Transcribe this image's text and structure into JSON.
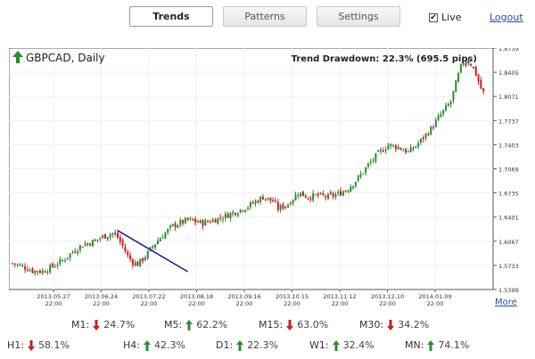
{
  "tabs": [
    {
      "label": "Trends",
      "active": true
    },
    {
      "label": "Patterns",
      "active": false
    },
    {
      "label": "Settings",
      "active": false
    }
  ],
  "live": {
    "label": "Live",
    "checked": true
  },
  "logout_label": "Logout",
  "more_label": "More",
  "colors": {
    "up": "#2e8b2e",
    "down": "#c42020",
    "trendline": "#1a1a9a",
    "border": "#555555"
  },
  "chart_data": {
    "type": "candlestick",
    "title": "GBPCAD, Daily",
    "title_arrow": "up",
    "annotation": "Trend Drawdown: 22.3% (695.5 pips)",
    "x_tick_labels": [
      [
        "2013.05.27",
        "22:00"
      ],
      [
        "2013.06.24",
        "22:00"
      ],
      [
        "2013.07.22",
        "22:00"
      ],
      [
        "2013.08.18",
        "22:00"
      ],
      [
        "2013.09.16",
        "22:00"
      ],
      [
        "2013.10.15",
        "22:00"
      ],
      [
        "2013.11.12",
        "22:00"
      ],
      [
        "2013.12.10",
        "22:00"
      ],
      [
        "2014.01.09",
        "22:00"
      ]
    ],
    "y_ticks": [
      "1.8739",
      "1.8405",
      "1.8071",
      "1.7737",
      "1.7403",
      "1.7069",
      "1.6735",
      "1.6401",
      "1.6067",
      "1.5733",
      "1.5399"
    ],
    "ylim": [
      1.5399,
      1.8739
    ],
    "close_path": [
      [
        0,
        1.576
      ],
      [
        4,
        1.572
      ],
      [
        8,
        1.566
      ],
      [
        12,
        1.565
      ],
      [
        16,
        1.572
      ],
      [
        20,
        1.58
      ],
      [
        24,
        1.592
      ],
      [
        28,
        1.602
      ],
      [
        32,
        1.606
      ],
      [
        36,
        1.613
      ],
      [
        40,
        1.618
      ],
      [
        42,
        1.612
      ],
      [
        44,
        1.6
      ],
      [
        46,
        1.586
      ],
      [
        48,
        1.578
      ],
      [
        50,
        1.575
      ],
      [
        52,
        1.582
      ],
      [
        54,
        1.59
      ],
      [
        56,
        1.6
      ],
      [
        58,
        1.608
      ],
      [
        60,
        1.615
      ],
      [
        64,
        1.628
      ],
      [
        70,
        1.636
      ],
      [
        76,
        1.632
      ],
      [
        82,
        1.638
      ],
      [
        88,
        1.646
      ],
      [
        94,
        1.655
      ],
      [
        100,
        1.668
      ],
      [
        104,
        1.662
      ],
      [
        106,
        1.652
      ],
      [
        110,
        1.658
      ],
      [
        114,
        1.674
      ],
      [
        118,
        1.668
      ],
      [
        122,
        1.67
      ],
      [
        126,
        1.668
      ],
      [
        130,
        1.672
      ],
      [
        134,
        1.68
      ],
      [
        138,
        1.694
      ],
      [
        142,
        1.712
      ],
      [
        146,
        1.728
      ],
      [
        150,
        1.74
      ],
      [
        154,
        1.737
      ],
      [
        158,
        1.73
      ],
      [
        160,
        1.735
      ],
      [
        163,
        1.746
      ],
      [
        167,
        1.762
      ],
      [
        171,
        1.782
      ],
      [
        175,
        1.8
      ],
      [
        177,
        1.825
      ],
      [
        179,
        1.848
      ],
      [
        181,
        1.858
      ],
      [
        183,
        1.852
      ],
      [
        185,
        1.838
      ],
      [
        187,
        1.818
      ],
      [
        188,
        1.812
      ]
    ],
    "trendline": {
      "from": [
        42,
        1.6215
      ],
      "to": [
        70,
        1.5645
      ]
    }
  },
  "stats": {
    "row1": [
      {
        "label": "M1:",
        "direction": "down",
        "value": "24.7%"
      },
      {
        "label": "M5:",
        "direction": "up",
        "value": "62.2%"
      },
      {
        "label": "M15:",
        "direction": "down",
        "value": "63.0%"
      },
      {
        "label": "M30:",
        "direction": "down",
        "value": "34.2%"
      }
    ],
    "row2": [
      {
        "label": "H1:",
        "direction": "down",
        "value": "58.1%"
      },
      {
        "label": "H4:",
        "direction": "up",
        "value": "42.3%"
      },
      {
        "label": "D1:",
        "direction": "up",
        "value": "22.3%"
      },
      {
        "label": "W1:",
        "direction": "up",
        "value": "32.4%"
      },
      {
        "label": "MN:",
        "direction": "up",
        "value": "74.1%"
      }
    ]
  }
}
